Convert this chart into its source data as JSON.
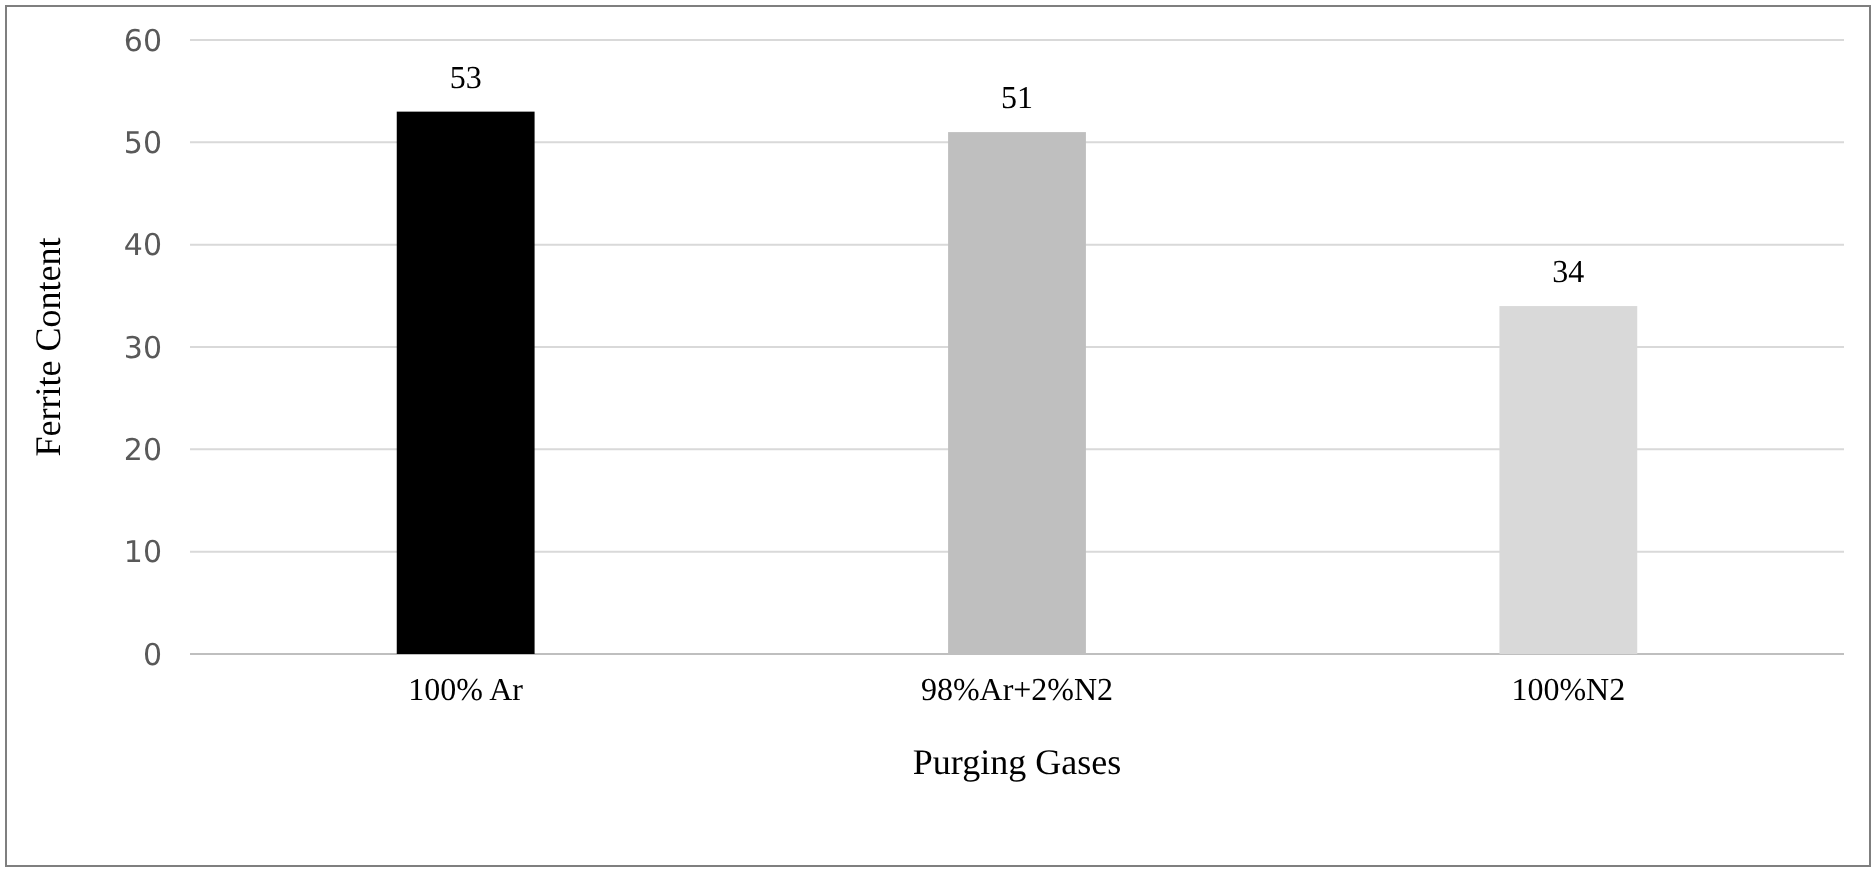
{
  "chart_data": {
    "type": "bar",
    "xlabel": "Purging Gases",
    "ylabel": "Ferrite Content",
    "categories": [
      "100% Ar",
      "98%Ar+2%N2",
      "100%N2"
    ],
    "values": [
      53,
      51,
      34
    ],
    "colors": [
      "#000000",
      "#bfbfbf",
      "#d9d9d9"
    ],
    "ylim": [
      0,
      60
    ],
    "yticks": [
      0,
      10,
      20,
      30,
      40,
      50,
      60
    ],
    "grid": "y",
    "data_labels": true
  }
}
